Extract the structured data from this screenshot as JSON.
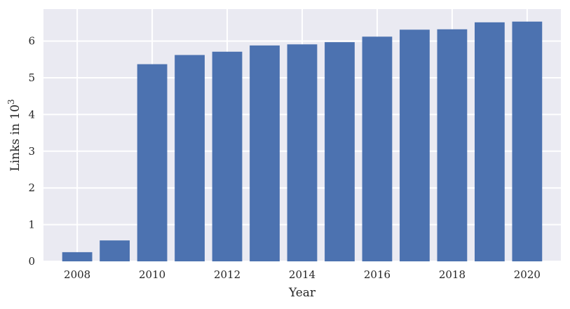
{
  "chart_data": {
    "type": "bar",
    "xlabel": "Year",
    "ylabel_main": "Links in 10",
    "ylabel_sup": "3",
    "categories": [
      2008,
      2009,
      2010,
      2011,
      2012,
      2013,
      2014,
      2015,
      2016,
      2017,
      2018,
      2019,
      2020
    ],
    "values": [
      0.25,
      0.57,
      5.37,
      5.62,
      5.71,
      5.88,
      5.91,
      5.97,
      6.12,
      6.31,
      6.32,
      6.51,
      6.53
    ],
    "xticks": [
      "2008",
      "2010",
      "2012",
      "2014",
      "2016",
      "2018",
      "2020"
    ],
    "yticks": [
      "0",
      "1",
      "2",
      "3",
      "4",
      "5",
      "6"
    ],
    "ylim": [
      0,
      6.87
    ],
    "xlim": [
      2007.1,
      2020.9
    ],
    "grid": true,
    "colors": {
      "bar": "#4c72b0",
      "plot_bg": "#eaeaf2",
      "grid": "#ffffff"
    }
  }
}
